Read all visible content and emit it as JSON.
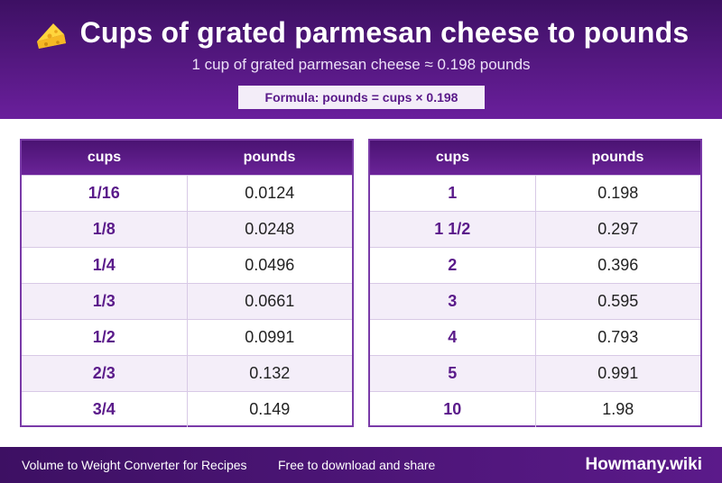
{
  "header": {
    "icon": "cheese-icon",
    "title": "Cups of grated parmesan cheese to pounds",
    "subtitle": "1 cup of grated parmesan cheese ≈ 0.198 pounds",
    "formula": "Formula: pounds = cups × 0.198"
  },
  "tables": {
    "left": {
      "columns": [
        "cups",
        "pounds"
      ],
      "rows": [
        [
          "1/16",
          "0.0124"
        ],
        [
          "1/8",
          "0.0248"
        ],
        [
          "1/4",
          "0.0496"
        ],
        [
          "1/3",
          "0.0661"
        ],
        [
          "1/2",
          "0.0991"
        ],
        [
          "2/3",
          "0.132"
        ],
        [
          "3/4",
          "0.149"
        ]
      ]
    },
    "right": {
      "columns": [
        "cups",
        "pounds"
      ],
      "rows": [
        [
          "1",
          "0.198"
        ],
        [
          "1 1/2",
          "0.297"
        ],
        [
          "2",
          "0.396"
        ],
        [
          "3",
          "0.595"
        ],
        [
          "4",
          "0.793"
        ],
        [
          "5",
          "0.991"
        ],
        [
          "10",
          "1.98"
        ]
      ]
    }
  },
  "footer": {
    "left_text": "Volume to Weight Converter for Recipes",
    "mid_text": "Free to download and share",
    "brand": "Howmany.wiki"
  },
  "colors": {
    "header_dark": "#3d1063",
    "header_light": "#6a1f9c",
    "accent_text": "#5a1a8a"
  }
}
